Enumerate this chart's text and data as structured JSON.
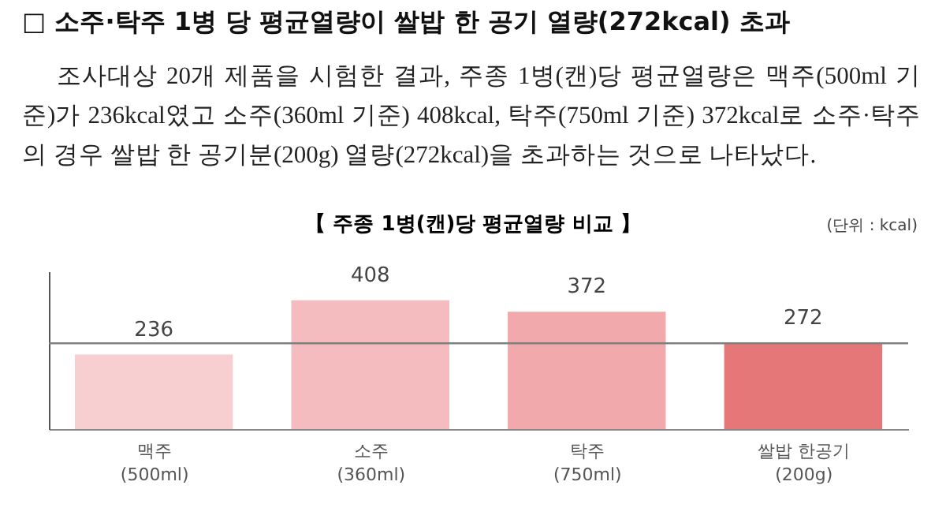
{
  "chart_data": {
    "type": "bar",
    "title": "□ 소주·탁주 1병 당 평균열량이 쌀밥 한 공기 열량(272kcal) 초과",
    "subtitle": "조사대상 20개 제품을 시험한 결과, 주종 1병(캔)당 평균열량은 맥주(500ml 기준)가 236kcal였고 소주(360ml 기준) 408kcal, 탁주(750ml 기준) 372kcal로 소주·탁주의 경우 쌀밥 한 공기분(200g) 열량(272kcal)을 초과하는 것으로 나타났다.",
    "annotations": [
      "【 주종 1병(캔)당 평균열량 비교 】",
      "(단위 : kcal)"
    ],
    "categories": [
      "맥주\n(500ml)",
      "소주\n(360ml)",
      "탁주\n(750ml)",
      "쌀밥 한공기\n(200g)"
    ],
    "values": [
      236,
      408,
      372,
      272
    ],
    "colors": [
      "#f8cfd0",
      "#f4bcbe",
      "#f1a9ab",
      "#e57779"
    ],
    "ylim": [
      0,
      500
    ],
    "data_labels": true,
    "tick_labels": "x",
    "ref_lines": [
      {
        "axis": "y",
        "value": 272,
        "color": "#808080"
      }
    ]
  }
}
